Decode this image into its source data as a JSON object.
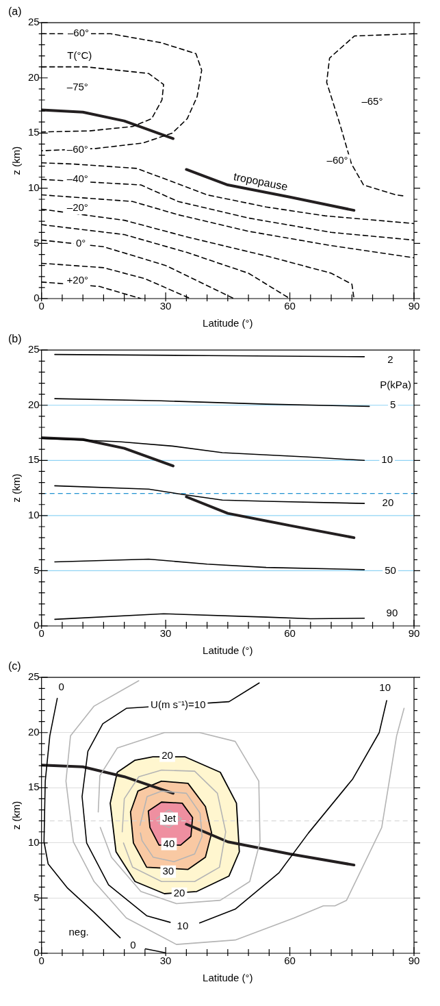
{
  "chart_data": [
    {
      "type": "line",
      "title": "(a)",
      "xlabel": "Latitude (°)",
      "ylabel": "z (km)",
      "xlim": [
        0,
        90
      ],
      "ylim": [
        0,
        25
      ],
      "marker": "none",
      "xticks": [
        0,
        {
          "value": 5,
          "label": null
        },
        {
          "value": 10,
          "label": null
        },
        {
          "value": 15,
          "label": null
        },
        {
          "value": 20,
          "label": null
        },
        {
          "value": 25,
          "label": null
        },
        30,
        {
          "value": 35,
          "label": null
        },
        {
          "value": 40,
          "label": null
        },
        {
          "value": 45,
          "label": null
        },
        {
          "value": 50,
          "label": null
        },
        {
          "value": 55,
          "label": null
        },
        60,
        {
          "value": 65,
          "label": null
        },
        {
          "value": 70,
          "label": null
        },
        {
          "value": 75,
          "label": null
        },
        {
          "value": 80,
          "label": null
        },
        {
          "value": 85,
          "label": null
        },
        90
      ],
      "yticks": [
        0,
        {
          "value": 1,
          "label": null
        },
        {
          "value": 2,
          "label": null
        },
        {
          "value": 3,
          "label": null
        },
        {
          "value": 4,
          "label": null
        },
        5,
        {
          "value": 6,
          "label": null
        },
        {
          "value": 7,
          "label": null
        },
        {
          "value": 8,
          "label": null
        },
        {
          "value": 9,
          "label": null
        },
        10,
        {
          "value": 11,
          "label": null
        },
        {
          "value": 12,
          "label": null
        },
        {
          "value": 13,
          "label": null
        },
        {
          "value": 14,
          "label": null
        },
        15,
        {
          "value": 16,
          "label": null
        },
        {
          "value": 17,
          "label": null
        },
        {
          "value": 18,
          "label": null
        },
        {
          "value": 19,
          "label": null
        },
        20,
        {
          "value": 21,
          "label": null
        },
        {
          "value": 22,
          "label": null
        },
        {
          "value": 23,
          "label": null
        },
        {
          "value": 24,
          "label": null
        },
        25
      ],
      "series": [
        {
          "color": "#000000",
          "line_style": "dashed",
          "x": [
            0,
            16.7,
            28.8,
            37.3,
            38.7,
            37.6,
            35.2,
            31.6,
            24.5,
            13.1,
            0
          ],
          "values": [
            24,
            24,
            23.2,
            22.2,
            20.7,
            18.3,
            16.3,
            15,
            14.1,
            13.6,
            13.4
          ]
        },
        {
          "color": "#000000",
          "line_style": "dashed",
          "x": [
            0,
            10.8,
            25.9,
            29.5,
            29.1,
            26.6,
            22,
            11.7,
            0
          ],
          "values": [
            21,
            21,
            20.4,
            19.4,
            18,
            16.3,
            15.6,
            15.2,
            15.1
          ]
        },
        {
          "color": "#000000",
          "line_style": "dashed",
          "x": [
            90,
            75.6,
            69.6,
            68.9,
            72.1,
            74.9,
            77.8,
            85.6,
            87.7
          ],
          "values": [
            24,
            23.8,
            21.8,
            19.6,
            15.8,
            12.2,
            10.3,
            9.4,
            9.3
          ]
        },
        {
          "color": "#000000",
          "line_style": "dashed",
          "x": [
            0,
            7.5,
            23,
            32.3,
            40,
            54.3,
            68.5,
            90
          ],
          "values": [
            12.3,
            12.2,
            11.8,
            10.5,
            9.4,
            8.3,
            7.5,
            6.8
          ]
        },
        {
          "color": "#000000",
          "line_style": "dashed",
          "x": [
            0,
            24,
            33,
            50,
            70,
            90
          ],
          "values": [
            10.8,
            10.3,
            8.8,
            7.3,
            6,
            5.3
          ]
        },
        {
          "color": "#000000",
          "line_style": "dashed",
          "x": [
            0,
            22,
            33,
            50,
            70,
            90
          ],
          "values": [
            9.4,
            8.8,
            7.6,
            6.1,
            4.8,
            3.7
          ]
        },
        {
          "color": "#000000",
          "line_style": "dashed",
          "x": [
            0,
            20,
            35,
            55,
            70,
            75,
            75.5
          ],
          "values": [
            8.1,
            7.1,
            5.6,
            3.8,
            2.3,
            1.3,
            0
          ]
        },
        {
          "color": "#000000",
          "line_style": "dashed",
          "x": [
            0,
            20,
            35,
            50,
            60
          ],
          "values": [
            6.7,
            5.8,
            4.2,
            2.3,
            0
          ]
        },
        {
          "color": "#000000",
          "line_style": "dashed",
          "x": [
            0,
            15,
            30,
            46.5
          ],
          "values": [
            5.3,
            4.7,
            3,
            0
          ]
        },
        {
          "color": "#000000",
          "line_style": "dashed",
          "x": [
            0,
            15,
            25,
            36
          ],
          "values": [
            3.2,
            2.8,
            1.8,
            0
          ]
        },
        {
          "color": "#000000",
          "line_style": "dashed",
          "x": [
            0,
            14,
            24
          ],
          "values": [
            1.5,
            1.1,
            0
          ]
        },
        {
          "color": "#231f20",
          "x": [
            0,
            10,
            20,
            31.8
          ],
          "values": [
            17.1,
            16.9,
            16.1,
            14.5
          ]
        },
        {
          "name": "tropopause",
          "color": "#231f20",
          "x": [
            35,
            45,
            60,
            75.5
          ],
          "values": [
            11.7,
            10.3,
            9.2,
            8
          ]
        }
      ],
      "annotations": [
        {
          "text": "–60°",
          "x": 8.9,
          "y": 24
        },
        {
          "text": "T(°C)",
          "x": 9.2,
          "y": 22
        },
        {
          "text": "–75°",
          "x": 8.7,
          "y": 19.1
        },
        {
          "text": "–60°",
          "x": 8.7,
          "y": 13.5
        },
        {
          "text": "–40°",
          "x": 8.7,
          "y": 10.8
        },
        {
          "text": "–20°",
          "x": 8.7,
          "y": 8.2
        },
        {
          "text": "0°",
          "x": 9.5,
          "y": 5
        },
        {
          "text": "+20°",
          "x": 8.7,
          "y": 1.6
        },
        {
          "text": "–65°",
          "x": 79.9,
          "y": 17.8
        },
        {
          "text": "–60°",
          "x": 71.5,
          "y": 12.5
        }
      ]
    },
    {
      "type": "line",
      "title": "(b)",
      "xlabel": "Latitude (°)",
      "ylabel": "z (km)",
      "xlim": [
        0,
        90
      ],
      "ylim": [
        0,
        25
      ],
      "marker": "none",
      "xticks": [
        0,
        {
          "value": 5,
          "label": null
        },
        {
          "value": 10,
          "label": null
        },
        {
          "value": 15,
          "label": null
        },
        {
          "value": 20,
          "label": null
        },
        {
          "value": 25,
          "label": null
        },
        30,
        {
          "value": 35,
          "label": null
        },
        {
          "value": 40,
          "label": null
        },
        {
          "value": 45,
          "label": null
        },
        {
          "value": 50,
          "label": null
        },
        {
          "value": 55,
          "label": null
        },
        60,
        {
          "value": 65,
          "label": null
        },
        {
          "value": 70,
          "label": null
        },
        {
          "value": 75,
          "label": null
        },
        {
          "value": 80,
          "label": null
        },
        {
          "value": 85,
          "label": null
        },
        90
      ],
      "yticks": [
        0,
        {
          "value": 1,
          "label": null
        },
        {
          "value": 2,
          "label": null
        },
        {
          "value": 3,
          "label": null
        },
        {
          "value": 4,
          "label": null
        },
        5,
        {
          "value": 6,
          "label": null
        },
        {
          "value": 7,
          "label": null
        },
        {
          "value": 8,
          "label": null
        },
        {
          "value": 9,
          "label": null
        },
        10,
        {
          "value": 11,
          "label": null
        },
        {
          "value": 12,
          "label": null
        },
        {
          "value": 13,
          "label": null
        },
        {
          "value": 14,
          "label": null
        },
        15,
        {
          "value": 16,
          "label": null
        },
        {
          "value": 17,
          "label": null
        },
        {
          "value": 18,
          "label": null
        },
        {
          "value": 19,
          "label": null
        },
        20,
        {
          "value": 21,
          "label": null
        },
        {
          "value": 22,
          "label": null
        },
        {
          "value": 23,
          "label": null
        },
        {
          "value": 24,
          "label": null
        },
        25
      ],
      "ref_lines": [
        {
          "axis": "y",
          "value": 5,
          "color": "#8fd3f4"
        },
        {
          "axis": "y",
          "value": 10,
          "color": "#8fd3f4"
        },
        {
          "axis": "y",
          "value": 15,
          "color": "#8fd3f4"
        },
        {
          "axis": "y",
          "value": 20,
          "color": "#8fd3f4"
        },
        {
          "axis": "y",
          "value": 12,
          "color": "#1e90d0",
          "line_style": "dashed"
        }
      ],
      "series": [
        {
          "color": "#000000",
          "x": [
            3.2,
            40,
            78
          ],
          "values": [
            24.6,
            24.5,
            24.4
          ]
        },
        {
          "color": "#000000",
          "x": [
            3.2,
            28.8,
            54.3,
            79.2
          ],
          "values": [
            20.6,
            20.4,
            20.1,
            19.9
          ]
        },
        {
          "color": "#000000",
          "x": [
            0,
            18.8,
            31.6,
            43.7,
            54.3,
            65,
            78
          ],
          "values": [
            17,
            16.7,
            16.3,
            15.7,
            15.5,
            15.3,
            15
          ]
        },
        {
          "color": "#000000",
          "x": [
            3.2,
            25.9,
            34.4,
            43.7,
            54.3,
            78
          ],
          "values": [
            12.7,
            12.4,
            11.9,
            11.4,
            11.3,
            11.1
          ]
        },
        {
          "color": "#000000",
          "x": [
            3.2,
            25.9,
            40,
            54.3,
            78
          ],
          "values": [
            5.8,
            6.05,
            5.6,
            5.3,
            5.1
          ]
        },
        {
          "color": "#000000",
          "x": [
            3.2,
            29.5,
            54.3,
            65,
            78
          ],
          "values": [
            0.6,
            1.1,
            0.8,
            0.65,
            0.7
          ]
        },
        {
          "color": "#231f20",
          "x": [
            0,
            10,
            20,
            31.8
          ],
          "values": [
            17.05,
            16.9,
            16.1,
            14.5
          ]
        },
        {
          "color": "#231f20",
          "x": [
            35,
            45,
            60,
            75.5
          ],
          "values": [
            11.7,
            10.2,
            9.1,
            8
          ]
        }
      ],
      "annotations": [
        {
          "text": "2",
          "x": 84.3,
          "y": 24.1
        },
        "P(kPa)",
        {
          "text": "5",
          "x": 84.9,
          "y": 20
        },
        {
          "text": "10",
          "x": 83.5,
          "y": 15
        },
        {
          "text": "20",
          "x": 83.7,
          "y": 11.1
        },
        {
          "text": "50",
          "x": 84.3,
          "y": 5
        },
        {
          "text": "90",
          "x": 84.7,
          "y": 1.15
        }
      ]
    },
    {
      "type": "line",
      "title": "(c)",
      "xlabel": "Latitude (°)",
      "ylabel": "z (km)",
      "xlim": [
        0,
        90
      ],
      "ylim": [
        0,
        25
      ],
      "marker": "none",
      "grid": "y",
      "xticks": [
        0,
        {
          "value": 5,
          "label": null
        },
        {
          "value": 10,
          "label": null
        },
        {
          "value": 15,
          "label": null
        },
        {
          "value": 20,
          "label": null
        },
        {
          "value": 25,
          "label": null
        },
        30,
        {
          "value": 35,
          "label": null
        },
        {
          "value": 40,
          "label": null
        },
        {
          "value": 45,
          "label": null
        },
        {
          "value": 50,
          "label": null
        },
        {
          "value": 55,
          "label": null
        },
        60,
        {
          "value": 65,
          "label": null
        },
        {
          "value": 70,
          "label": null
        },
        {
          "value": 75,
          "label": null
        },
        {
          "value": 80,
          "label": null
        },
        {
          "value": 85,
          "label": null
        },
        90
      ],
      "yticks": [
        0,
        {
          "value": 1,
          "label": null
        },
        {
          "value": 2,
          "label": null
        },
        {
          "value": 3,
          "label": null
        },
        {
          "value": 4,
          "label": null
        },
        5,
        {
          "value": 6,
          "label": null
        },
        {
          "value": 7,
          "label": null
        },
        {
          "value": 8,
          "label": null
        },
        {
          "value": 9,
          "label": null
        },
        10,
        {
          "value": 11,
          "label": null
        },
        {
          "value": 12,
          "label": null
        },
        {
          "value": 13,
          "label": null
        },
        {
          "value": 14,
          "label": null
        },
        15,
        {
          "value": 16,
          "label": null
        },
        {
          "value": 17,
          "label": null
        },
        {
          "value": 18,
          "label": null
        },
        {
          "value": 19,
          "label": null
        },
        20,
        {
          "value": 21,
          "label": null
        },
        {
          "value": 22,
          "label": null
        },
        {
          "value": 23,
          "label": null
        },
        {
          "value": 24,
          "label": null
        },
        25
      ],
      "ref_lines": [
        {
          "axis": "y",
          "value": 12,
          "color": "#d8d8d8",
          "line_style": "dashed"
        }
      ],
      "series": [
        {
          "type": "area",
          "color": "#fff6cf",
          "x": [
            26.9,
            34.7,
            43.2,
            47.1,
            47.8,
            45.3,
            37.5,
            29.7,
            22.6,
            18,
            16.6,
            18.3,
            22.6,
            26.9
          ],
          "values": [
            17.8,
            17.8,
            16.4,
            13.6,
            9.2,
            7,
            5.6,
            5.4,
            6.5,
            9.2,
            13.6,
            16.4,
            17.5,
            17.8
          ]
        },
        {
          "type": "area",
          "color": "#f9c9a3",
          "x": [
            29,
            35.4,
            39.6,
            41.1,
            39.6,
            35.4,
            25.4,
            22.2,
            21.5,
            23.3,
            29
          ],
          "values": [
            15.6,
            15.4,
            13.3,
            10.9,
            8.7,
            7.6,
            7.8,
            10,
            12.8,
            14.7,
            15.6
          ]
        },
        {
          "type": "area",
          "color": "#ef8fa0",
          "x": [
            29,
            34,
            36.5,
            36.1,
            33.6,
            28.4,
            26.2,
            25.8,
            29
          ],
          "values": [
            13.7,
            13.6,
            12.3,
            10.6,
            9.8,
            9.8,
            11.4,
            12.9,
            13.7
          ]
        },
        {
          "color": "#b4b4b4",
          "x": [
            23.5,
            12.7,
            7,
            5.9,
            7.7,
            12.7,
            20.5,
            32.6,
            46.8,
            61,
            68.1,
            70.9,
            73.7,
            82.2,
            85.8,
            87.6
          ],
          "values": [
            24.7,
            22.4,
            19.7,
            15.6,
            10.1,
            6.5,
            3.2,
            0.8,
            1.2,
            3.2,
            4.3,
            4.3,
            4.8,
            11.4,
            19.7,
            22.2
          ]
        },
        {
          "color": "#b4b4b4",
          "x": [
            13.7,
            14.1,
            18.3,
            29.7,
            38.2,
            46.8,
            52.5,
            52.8,
            50.3,
            43.2,
            32.6,
            24,
            16.9,
            14.2
          ],
          "values": [
            12.8,
            16.1,
            18.6,
            20,
            20,
            19.2,
            15.6,
            10.1,
            6.5,
            4.8,
            4.5,
            5.6,
            8.7,
            11.4
          ]
        },
        {
          "color": "#b4b4b4",
          "x": [
            19.5,
            20,
            23.5,
            29,
            37,
            42.5,
            44.5,
            43,
            37,
            29,
            22,
            19.8
          ],
          "values": [
            11,
            14,
            16,
            16.6,
            16.5,
            14.5,
            11,
            7.8,
            6.5,
            6.5,
            7.8,
            10
          ]
        },
        {
          "color": "#b4b4b4",
          "x": [
            23.8,
            25.5,
            29,
            35,
            38.3,
            38.8,
            37,
            32,
            27,
            24.3,
            23.9
          ],
          "values": [
            11.6,
            14.2,
            14.7,
            14.5,
            12.7,
            10.6,
            9,
            8.3,
            8.7,
            10.2,
            10.9
          ]
        },
        {
          "color": "#b4b4b4",
          "x": [
            27.8,
            30.8,
            33.8,
            30.8,
            28.3
          ],
          "values": [
            12.2,
            13,
            12.2,
            11.4,
            11.8
          ]
        },
        {
          "color": "#000000",
          "x": [
            3.8,
            2,
            0.9,
            0.6,
            1.6,
            6.3,
            12.7,
            19,
            null,
            25.1,
            29.9
          ],
          "values": [
            23.1,
            19.7,
            15.6,
            10.1,
            8.1,
            5.9,
            3.7,
            1.4,
            null,
            0.4,
            0.05
          ]
        },
        {
          "color": "#000000",
          "x": [
            52.6,
            45.3,
            20.5,
            14.8,
            11.2,
            9.8,
            10.9,
            16.2,
            25.4,
            31.1,
            null,
            38.2,
            46.8,
            57.4,
            64.5,
            75.2,
            81.6,
            83.4
          ],
          "values": [
            24.5,
            22.8,
            22.2,
            20.8,
            18.3,
            14.2,
            10,
            6.2,
            3.4,
            2.8,
            null,
            2.75,
            4,
            7.3,
            10.9,
            15.8,
            20,
            22.9
          ]
        },
        {
          "color": "#231f20",
          "x": [
            0,
            10,
            20,
            31.8
          ],
          "values": [
            17.05,
            16.9,
            16,
            14.5
          ]
        },
        {
          "color": "#231f20",
          "x": [
            35,
            45,
            60,
            75.5
          ],
          "values": [
            11.7,
            10.1,
            9,
            8
          ]
        }
      ],
      "annotations": [
        {
          "text": "0",
          "x": 4.8,
          "y": 24.1
        },
        {
          "text": "U(m s⁻¹)=10",
          "x": 33,
          "y": 22.5
        },
        {
          "text": "10",
          "x": 83,
          "y": 24
        },
        {
          "text": "20",
          "x": 30.4,
          "y": 17.9
        },
        {
          "text": "Jet",
          "x": 30.8,
          "y": 12.2
        },
        {
          "text": "40",
          "x": 30.8,
          "y": 9.9
        },
        {
          "text": "30",
          "x": 30.6,
          "y": 7.4
        },
        {
          "text": "20",
          "x": 33.3,
          "y": 5.4
        },
        {
          "text": "10",
          "x": 34.1,
          "y": 2.4
        },
        {
          "text": "neg.",
          "x": 9,
          "y": 1.9
        },
        {
          "text": "0",
          "x": 22.1,
          "y": 0.7
        }
      ]
    }
  ]
}
